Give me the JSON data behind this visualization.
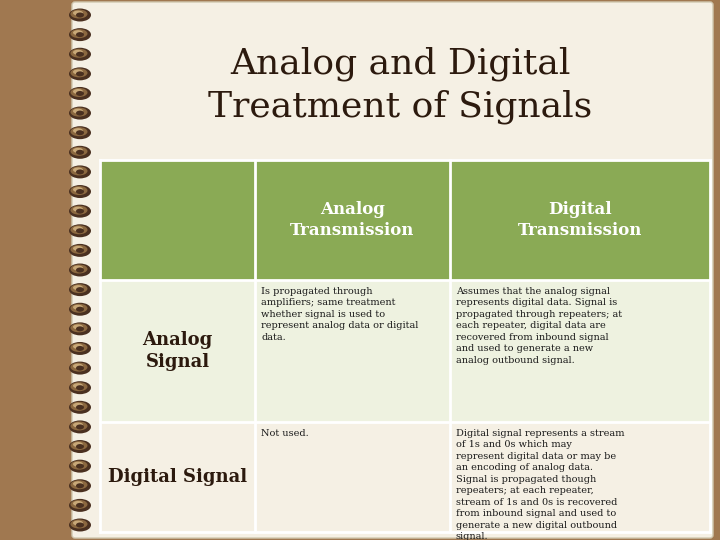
{
  "title": "Analog and Digital\nTreatment of Signals",
  "title_fontsize": 26,
  "title_color": "#2c1a0e",
  "background_color": "#a07850",
  "page_color": "#f5f0e4",
  "header_bg_color": "#8aaa55",
  "header_text_color": "#ffffff",
  "row1_bg_color": "#eef2e0",
  "row2_bg_color": "#f5f0e4",
  "col_labels": [
    "Analog\nTransmission",
    "Digital\nTransmission"
  ],
  "row_labels": [
    "Analog\nSignal",
    "Digital Signal"
  ],
  "row_label_fontsize": 13,
  "col_label_fontsize": 12,
  "body_fontsize": 7,
  "cell_text_00": "Is propagated through\namplifiers; same treatment\nwhether signal is used to\nrepresent analog data or digital\ndata.",
  "cell_text_01": "Assumes that the analog signal\nrepresents digital data. Signal is\npropagated through repeaters; at\neach repeater, digital data are\nrecovered from inbound signal\nand used to generate a new\nanalog outbound signal.",
  "cell_text_10": "Not used.",
  "cell_text_11": "Digital signal represents a stream\nof 1s and 0s which may\nrepresent digital data or may be\nan encoding of analog data.\nSignal is propagated though\nrepeaters; at each repeater,\nstream of 1s and 0s is recovered\nfrom inbound signal and used to\ngenerate a new digital outbound\nsignal.",
  "spiral_dark": "#4a3020",
  "spiral_mid": "#8b6840",
  "spiral_light": "#c8a878",
  "border_color": "#d0c8b0"
}
